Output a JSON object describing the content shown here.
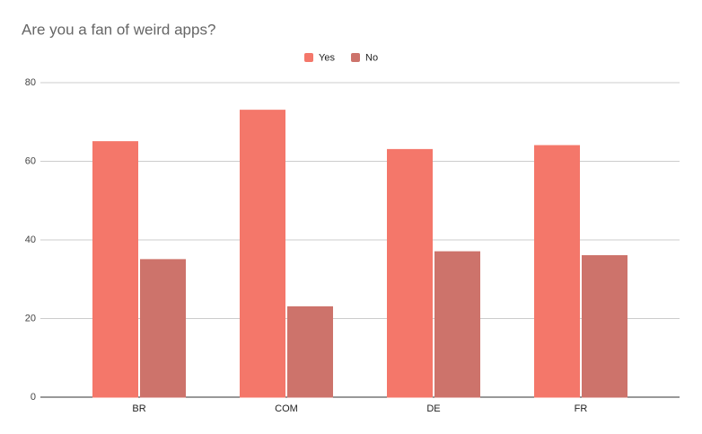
{
  "chart_data": {
    "type": "bar",
    "title": "Are you a fan of weird apps?",
    "categories": [
      "BR",
      "COM",
      "DE",
      "FR"
    ],
    "series": [
      {
        "name": "Yes",
        "color": "#f4776a",
        "values": [
          65,
          73,
          63,
          64
        ]
      },
      {
        "name": "No",
        "color": "#cd736b",
        "values": [
          35,
          23,
          37,
          36
        ]
      }
    ],
    "ylim": [
      0,
      80
    ],
    "yticks": [
      0,
      20,
      40,
      60,
      80
    ],
    "grid": true,
    "legend": "top"
  }
}
